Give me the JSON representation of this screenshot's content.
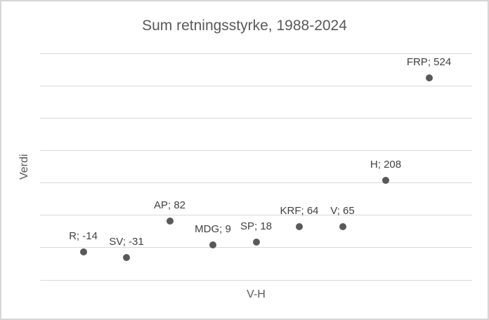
{
  "chart_data": {
    "type": "scatter",
    "title": "Sum retningsstyrke, 1988-2024",
    "xlabel": "V-H",
    "ylabel": "Verdi",
    "xlim": [
      0,
      10
    ],
    "ylim": [
      -100,
      600
    ],
    "gridline_step": 100,
    "grid": "horizontal-only",
    "legend": "none",
    "axis_tick_labels": "none",
    "label_format": "{name}; {value}",
    "points": [
      {
        "name": "R",
        "x": 1,
        "y": -14,
        "label": "R; -14"
      },
      {
        "name": "SV",
        "x": 2,
        "y": -31,
        "label": "SV; -31"
      },
      {
        "name": "AP",
        "x": 3,
        "y": 82,
        "label": "AP; 82"
      },
      {
        "name": "MDG",
        "x": 4,
        "y": 9,
        "label": "MDG; 9"
      },
      {
        "name": "SP",
        "x": 5,
        "y": 18,
        "label": "SP; 18"
      },
      {
        "name": "KRF",
        "x": 6,
        "y": 64,
        "label": "KRF; 64"
      },
      {
        "name": "V",
        "x": 7,
        "y": 65,
        "label": "V; 65"
      },
      {
        "name": "H",
        "x": 8,
        "y": 208,
        "label": "H; 208"
      },
      {
        "name": "FRP",
        "x": 9,
        "y": 524,
        "label": "FRP; 524"
      }
    ],
    "colors": {
      "marker": "#595959",
      "gridline": "#d9d9d9",
      "title_text": "#595959",
      "axis_label_text": "#595959",
      "data_label_text": "#404040",
      "border": "#d6d6d6",
      "background": "#ffffff"
    }
  }
}
